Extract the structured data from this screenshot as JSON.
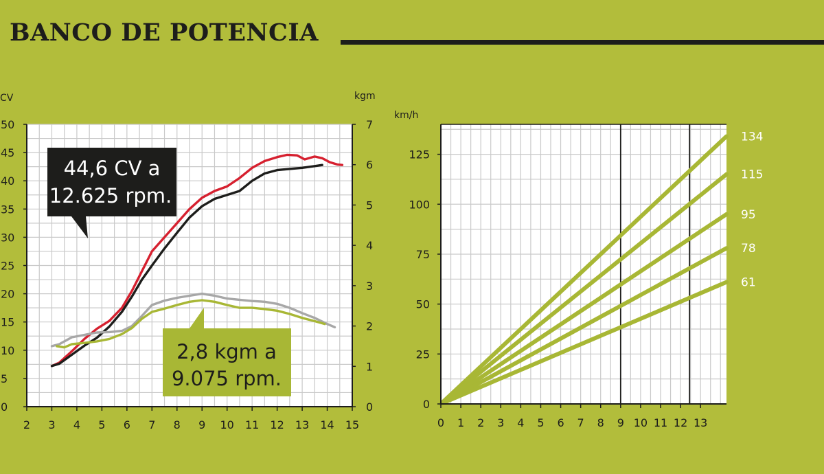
{
  "header": {
    "title": "BANCO DE POTENCIA"
  },
  "colors": {
    "background": "#b2bd3b",
    "grid": "#c9c9c9",
    "dark": "#1d1d1b",
    "power_red": "#d6202f",
    "power_black": "#1d1d1b",
    "torque_gray": "#a7a7a7",
    "torque_green": "#a8b735",
    "speed_lines": "#a8b735"
  },
  "chart_data": [
    {
      "type": "line",
      "xlim": [
        2,
        15
      ],
      "xticks": [
        "2",
        "3",
        "4",
        "5",
        "6",
        "7",
        "8",
        "9",
        "10",
        "11",
        "12",
        "13",
        "14",
        "15"
      ],
      "y_left": {
        "label": "CV",
        "lim": [
          0,
          50
        ],
        "ticks": [
          "0",
          "5",
          "10",
          "15",
          "20",
          "25",
          "30",
          "35",
          "40",
          "45",
          "50"
        ]
      },
      "y_right": {
        "label": "kgm",
        "lim": [
          0,
          7
        ],
        "ticks": [
          "0",
          "1",
          "2",
          "3",
          "4",
          "5",
          "6",
          "7"
        ]
      },
      "grid": true,
      "series": [
        {
          "axis": "left",
          "color": "#d6202f",
          "x": [
            3,
            3.3,
            3.8,
            4.3,
            4.8,
            5.3,
            5.8,
            6.2,
            6.6,
            7,
            7.5,
            8,
            8.5,
            9,
            9.5,
            10,
            10.5,
            11,
            11.5,
            12,
            12.4,
            12.8,
            13.1,
            13.5,
            13.8,
            14.1,
            14.4,
            14.6
          ],
          "y": [
            7.2,
            7.8,
            9.8,
            12,
            13.8,
            15.2,
            17.5,
            20.5,
            24,
            27.5,
            30,
            32.5,
            35,
            37,
            38.2,
            39,
            40.5,
            42.3,
            43.5,
            44.2,
            44.6,
            44.5,
            43.8,
            44.3,
            44.0,
            43.3,
            42.9,
            42.8
          ]
        },
        {
          "axis": "left",
          "color": "#1d1d1b",
          "x": [
            3,
            3.3,
            3.8,
            4.3,
            4.8,
            5.3,
            5.8,
            6.2,
            6.6,
            7,
            7.5,
            8,
            8.5,
            9,
            9.5,
            10,
            10.5,
            11,
            11.5,
            12,
            12.5,
            13,
            13.5,
            13.8
          ],
          "y": [
            7.2,
            7.6,
            9.2,
            10.8,
            12.2,
            14.2,
            16.8,
            19.5,
            22.5,
            25,
            28,
            30.8,
            33.5,
            35.5,
            36.8,
            37.5,
            38.2,
            40,
            41.3,
            41.9,
            42.1,
            42.3,
            42.6,
            42.8
          ]
        },
        {
          "axis": "right",
          "color": "#a7a7a7",
          "x": [
            3,
            3.3,
            3.8,
            4.3,
            4.8,
            5.3,
            5.8,
            6.2,
            6.6,
            7,
            7.5,
            8,
            8.5,
            9,
            9.5,
            10,
            10.5,
            11,
            11.5,
            12,
            12.5,
            13,
            13.5,
            14,
            14.3
          ],
          "y": [
            1.5,
            1.55,
            1.72,
            1.78,
            1.84,
            1.85,
            1.88,
            2.0,
            2.25,
            2.52,
            2.63,
            2.7,
            2.75,
            2.8,
            2.75,
            2.68,
            2.65,
            2.62,
            2.6,
            2.55,
            2.45,
            2.32,
            2.2,
            2.05,
            1.97
          ]
        },
        {
          "axis": "right",
          "color": "#a8b735",
          "x": [
            3.2,
            3.5,
            3.8,
            4.3,
            4.8,
            5.3,
            5.8,
            6.2,
            6.6,
            7,
            7.5,
            8,
            8.5,
            9,
            9.5,
            10,
            10.5,
            11,
            11.5,
            12,
            12.5,
            13,
            13.5,
            13.9
          ],
          "y": [
            1.5,
            1.47,
            1.55,
            1.58,
            1.62,
            1.68,
            1.8,
            1.95,
            2.18,
            2.35,
            2.43,
            2.52,
            2.6,
            2.64,
            2.6,
            2.52,
            2.45,
            2.45,
            2.42,
            2.38,
            2.3,
            2.2,
            2.12,
            2.05
          ]
        }
      ],
      "annotations": [
        {
          "text": [
            "44,6 CV a",
            "12.625 rpm."
          ]
        },
        {
          "text": [
            "2,8 kgm a",
            "9.075 rpm."
          ]
        }
      ]
    },
    {
      "type": "line",
      "xlim": [
        0,
        14.3
      ],
      "xticks": [
        "0",
        "1",
        "2",
        "3",
        "4",
        "5",
        "6",
        "7",
        "8",
        "9",
        "10",
        "11",
        "12",
        "13"
      ],
      "y": {
        "label": "km/h",
        "lim": [
          0,
          140
        ],
        "ticks": [
          "0",
          "25",
          "50",
          "75",
          "100",
          "125"
        ]
      },
      "grid": true,
      "vlines": [
        9,
        12.45
      ],
      "series": [
        {
          "label": "134",
          "x": [
            0,
            14.3
          ],
          "y": [
            0,
            134
          ]
        },
        {
          "label": "115",
          "x": [
            0,
            14.3
          ],
          "y": [
            0,
            115
          ]
        },
        {
          "label": "95",
          "x": [
            0,
            14.3
          ],
          "y": [
            0,
            95
          ]
        },
        {
          "label": "78",
          "x": [
            0,
            14.3
          ],
          "y": [
            0,
            78
          ]
        },
        {
          "label": "61",
          "x": [
            0,
            14.3
          ],
          "y": [
            0,
            61
          ]
        }
      ]
    }
  ]
}
